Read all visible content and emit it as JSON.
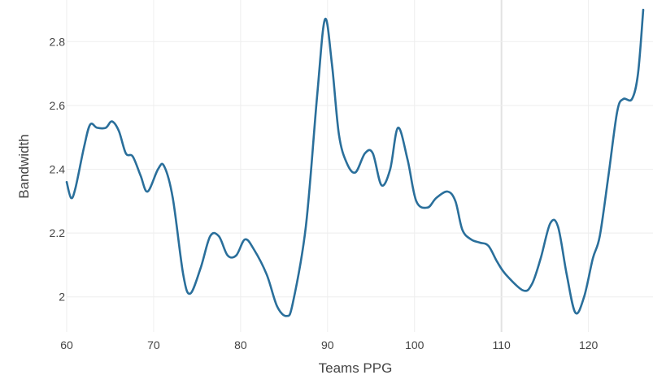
{
  "chart_data": {
    "type": "line",
    "xlabel": "Teams PPG",
    "ylabel": "Bandwidth",
    "xlim": [
      60,
      126.3
    ],
    "ylim": [
      1.9,
      2.9
    ],
    "grid": true,
    "x_ticks": [
      60,
      70,
      80,
      90,
      100,
      110,
      120
    ],
    "y_ticks": [
      2,
      2.2,
      2.4,
      2.6,
      2.8
    ],
    "x_tick_labels": [
      "60",
      "70",
      "80",
      "90",
      "100",
      "110",
      "120"
    ],
    "y_tick_labels": [
      "2",
      "2.2",
      "2.4",
      "2.6",
      "2.8"
    ],
    "colors": {
      "line": "#2a6f9b",
      "grid": "#eeeeee",
      "highlight_grid": "#e2e2e2"
    },
    "highlight_x": 110,
    "series": [
      {
        "x": [
          60,
          60.5,
          61,
          62,
          62.7,
          63.5,
          64.5,
          65.2,
          66,
          66.8,
          67.6,
          68.5,
          69.3,
          70.5,
          71.2,
          72.2,
          73.4,
          74.2,
          75.4,
          76.5,
          77.5,
          78.5,
          79.5,
          80.5,
          81.5,
          83,
          84.2,
          85.3,
          86,
          87.5,
          88.8,
          89.7,
          90.5,
          91.3,
          92.2,
          93.2,
          94.3,
          95.2,
          96.2,
          97.2,
          98.1,
          99.2,
          100.2,
          101.5,
          102.5,
          103.8,
          104.7,
          105.5,
          106.5,
          107.5,
          108.5,
          109.5,
          110.5,
          112.5,
          113.5,
          114.5,
          115.6,
          116.5,
          117.5,
          118.5,
          119.5,
          120.5,
          121.3,
          122.3,
          123.3,
          124,
          125,
          125.7,
          126.3
        ],
        "values": [
          2.36,
          2.31,
          2.34,
          2.47,
          2.54,
          2.53,
          2.53,
          2.55,
          2.52,
          2.45,
          2.44,
          2.38,
          2.33,
          2.4,
          2.41,
          2.31,
          2.07,
          2.01,
          2.09,
          2.19,
          2.19,
          2.13,
          2.13,
          2.18,
          2.15,
          2.07,
          1.97,
          1.94,
          1.98,
          2.22,
          2.63,
          2.87,
          2.73,
          2.51,
          2.42,
          2.39,
          2.45,
          2.45,
          2.35,
          2.4,
          2.53,
          2.43,
          2.3,
          2.28,
          2.31,
          2.33,
          2.3,
          2.21,
          2.18,
          2.17,
          2.16,
          2.11,
          2.07,
          2.02,
          2.04,
          2.12,
          2.23,
          2.22,
          2.07,
          1.95,
          2.0,
          2.12,
          2.19,
          2.38,
          2.58,
          2.62,
          2.62,
          2.7,
          2.9
        ]
      }
    ]
  }
}
